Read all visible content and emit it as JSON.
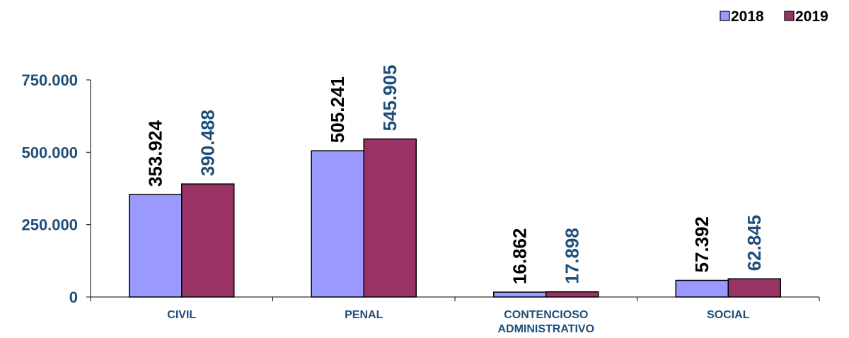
{
  "chart_data": {
    "type": "bar",
    "categories": [
      [
        "CIVIL"
      ],
      [
        "PENAL"
      ],
      [
        "CONTENCIOSO",
        "ADMINISTRATIVO"
      ],
      [
        "SOCIAL"
      ]
    ],
    "series": [
      {
        "name": "2018",
        "values": [
          353924,
          505241,
          16862,
          57392
        ],
        "labels": [
          "353.924",
          "505.241",
          "16.862",
          "57.392"
        ],
        "color": "#9999ff",
        "label_color": "#000000"
      },
      {
        "name": "2019",
        "values": [
          390488,
          545905,
          17898,
          62845
        ],
        "labels": [
          "390.488",
          "545.905",
          "17.898",
          "62.845"
        ],
        "color": "#993366",
        "label_color": "#1f4e79"
      }
    ],
    "y_ticks": [
      0,
      250000,
      500000,
      750000
    ],
    "y_tick_labels": [
      "0",
      "250.000",
      "500.000",
      "750.000"
    ],
    "ylim": [
      0,
      750000
    ],
    "grid": false,
    "legend": "top-right",
    "axis_text_color": "#1f4e79"
  }
}
